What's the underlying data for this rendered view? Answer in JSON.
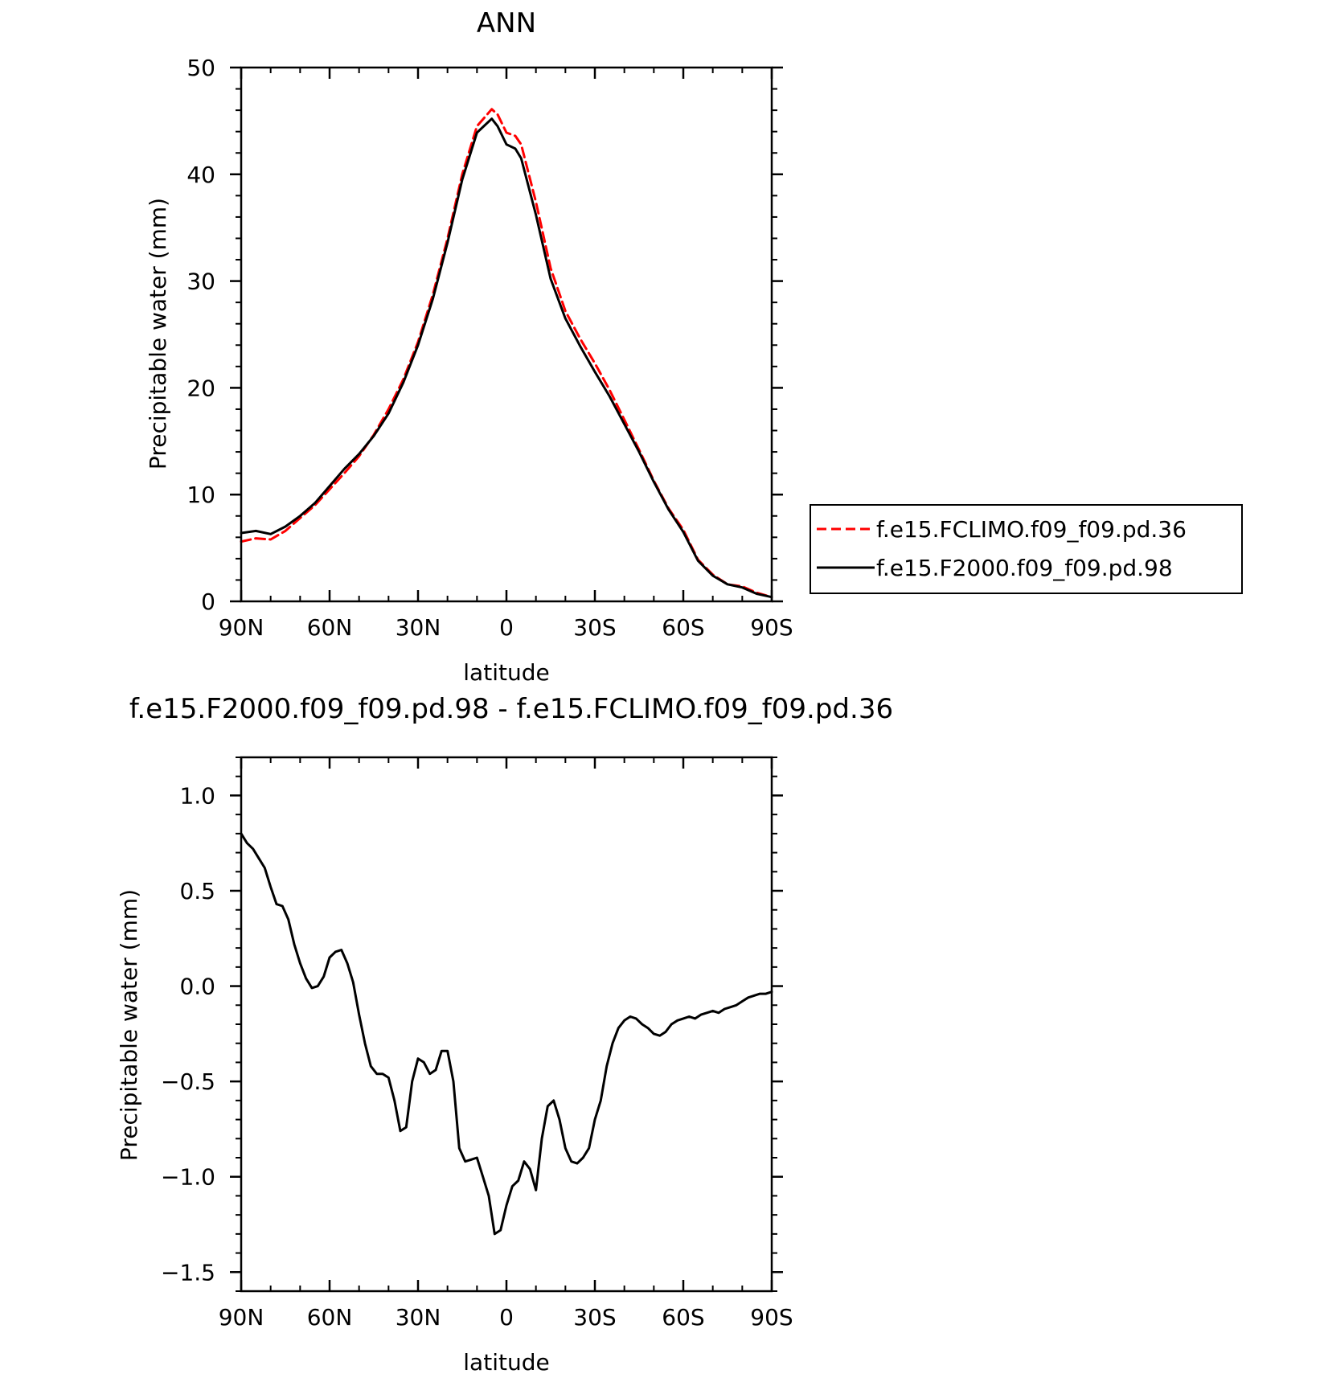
{
  "chart_data": [
    {
      "type": "line",
      "title": "ANN",
      "xlabel": "latitude",
      "ylabel": "Precipitable water (mm)",
      "xlim": [
        90,
        -90
      ],
      "ylim": [
        0,
        50
      ],
      "x_ticks": [
        {
          "value": 90,
          "label": "90N"
        },
        {
          "value": 60,
          "label": "60N"
        },
        {
          "value": 30,
          "label": "30N"
        },
        {
          "value": 0,
          "label": "0"
        },
        {
          "value": -30,
          "label": "30S"
        },
        {
          "value": -60,
          "label": "60S"
        },
        {
          "value": -90,
          "label": "90S"
        }
      ],
      "y_ticks": [
        {
          "value": 0,
          "label": "0"
        },
        {
          "value": 10,
          "label": "10"
        },
        {
          "value": 20,
          "label": "20"
        },
        {
          "value": 30,
          "label": "30"
        },
        {
          "value": 40,
          "label": "40"
        },
        {
          "value": 50,
          "label": "50"
        }
      ],
      "legend_position": "right",
      "series": [
        {
          "name": "f.e15.FCLIMO.f09_f09.pd.36",
          "color": "#ff0000",
          "style": "dashed",
          "x": [
            90,
            85,
            80,
            75,
            70,
            65,
            60,
            55,
            50,
            45,
            40,
            35,
            30,
            25,
            20,
            15,
            10,
            5,
            3,
            0,
            -3,
            -5,
            -10,
            -15,
            -20,
            -25,
            -30,
            -35,
            -40,
            -45,
            -50,
            -55,
            -60,
            -65,
            -70,
            -75,
            -80,
            -85,
            -90
          ],
          "y": [
            5.6,
            5.9,
            5.8,
            6.6,
            7.8,
            9.0,
            10.5,
            12.0,
            13.6,
            15.6,
            18.0,
            20.8,
            24.3,
            28.7,
            34.0,
            40.0,
            44.5,
            46.1,
            45.6,
            43.9,
            43.6,
            42.8,
            37.4,
            31.2,
            27.2,
            24.6,
            22.3,
            19.8,
            17.0,
            14.2,
            11.3,
            8.7,
            6.7,
            3.9,
            2.5,
            1.6,
            1.4,
            0.8,
            0.4
          ]
        },
        {
          "name": "f.e15.F2000.f09_f09.pd.98",
          "color": "#000000",
          "style": "solid",
          "x": [
            90,
            85,
            80,
            75,
            70,
            65,
            60,
            55,
            50,
            45,
            40,
            35,
            30,
            25,
            20,
            15,
            10,
            5,
            3,
            0,
            -3,
            -5,
            -10,
            -15,
            -20,
            -25,
            -30,
            -35,
            -40,
            -45,
            -50,
            -55,
            -60,
            -65,
            -70,
            -75,
            -80,
            -85,
            -90
          ],
          "y": [
            6.4,
            6.6,
            6.3,
            7.0,
            8.0,
            9.2,
            10.8,
            12.4,
            13.8,
            15.5,
            17.6,
            20.5,
            24.0,
            28.3,
            33.6,
            39.5,
            43.9,
            45.2,
            44.5,
            42.8,
            42.4,
            41.5,
            36.2,
            30.2,
            26.5,
            23.9,
            21.5,
            19.2,
            16.6,
            14.0,
            11.2,
            8.6,
            6.5,
            3.8,
            2.4,
            1.6,
            1.3,
            0.7,
            0.4
          ]
        }
      ]
    },
    {
      "type": "line",
      "title": "f.e15.F2000.f09_f09.pd.98 - f.e15.FCLIMO.f09_f09.pd.36",
      "xlabel": "latitude",
      "ylabel": "Precipitable water (mm)",
      "xlim": [
        90,
        -90
      ],
      "ylim": [
        -1.6,
        1.2
      ],
      "x_ticks": [
        {
          "value": 90,
          "label": "90N"
        },
        {
          "value": 60,
          "label": "60N"
        },
        {
          "value": 30,
          "label": "30N"
        },
        {
          "value": 0,
          "label": "0"
        },
        {
          "value": -30,
          "label": "30S"
        },
        {
          "value": -60,
          "label": "60S"
        },
        {
          "value": -90,
          "label": "90S"
        }
      ],
      "y_ticks": [
        {
          "value": -1.5,
          "label": "−1.5"
        },
        {
          "value": -1.0,
          "label": "−1.0"
        },
        {
          "value": -0.5,
          "label": "−0.5"
        },
        {
          "value": 0.0,
          "label": "0.0"
        },
        {
          "value": 0.5,
          "label": "0.5"
        },
        {
          "value": 1.0,
          "label": "1.0"
        }
      ],
      "series": [
        {
          "color": "#000000",
          "style": "solid",
          "x": [
            90,
            88,
            86,
            84,
            82,
            80,
            78,
            76,
            74,
            72,
            70,
            68,
            66,
            64,
            62,
            60,
            58,
            56,
            54,
            52,
            50,
            48,
            46,
            44,
            42,
            40,
            38,
            36,
            34,
            32,
            30,
            28,
            26,
            24,
            22,
            20,
            18,
            16,
            14,
            12,
            10,
            8,
            6,
            4,
            2,
            0,
            -2,
            -4,
            -6,
            -8,
            -10,
            -12,
            -14,
            -16,
            -18,
            -20,
            -22,
            -24,
            -26,
            -28,
            -30,
            -32,
            -34,
            -36,
            -38,
            -40,
            -42,
            -44,
            -46,
            -48,
            -50,
            -52,
            -54,
            -56,
            -58,
            -60,
            -62,
            -64,
            -66,
            -68,
            -70,
            -72,
            -74,
            -76,
            -78,
            -80,
            -82,
            -84,
            -86,
            -88,
            -90
          ],
          "y": [
            0.8,
            0.75,
            0.72,
            0.67,
            0.62,
            0.52,
            0.43,
            0.42,
            0.35,
            0.22,
            0.12,
            0.04,
            -0.01,
            0.0,
            0.05,
            0.15,
            0.18,
            0.19,
            0.12,
            0.02,
            -0.15,
            -0.3,
            -0.42,
            -0.46,
            -0.46,
            -0.48,
            -0.6,
            -0.76,
            -0.74,
            -0.5,
            -0.38,
            -0.4,
            -0.46,
            -0.44,
            -0.34,
            -0.34,
            -0.5,
            -0.85,
            -0.92,
            -0.91,
            -0.9,
            -1.0,
            -1.1,
            -1.3,
            -1.28,
            -1.15,
            -1.05,
            -1.02,
            -0.92,
            -0.96,
            -1.07,
            -0.8,
            -0.63,
            -0.6,
            -0.7,
            -0.85,
            -0.92,
            -0.93,
            -0.9,
            -0.85,
            -0.7,
            -0.6,
            -0.42,
            -0.3,
            -0.22,
            -0.18,
            -0.16,
            -0.17,
            -0.2,
            -0.22,
            -0.25,
            -0.26,
            -0.24,
            -0.2,
            -0.18,
            -0.17,
            -0.16,
            -0.17,
            -0.15,
            -0.14,
            -0.13,
            -0.14,
            -0.12,
            -0.11,
            -0.1,
            -0.08,
            -0.06,
            -0.05,
            -0.04,
            -0.04,
            -0.03
          ]
        }
      ]
    }
  ]
}
